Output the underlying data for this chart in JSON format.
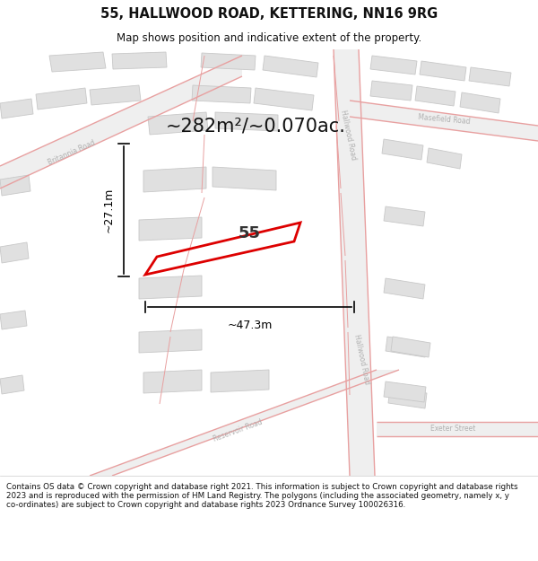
{
  "title_line1": "55, HALLWOOD ROAD, KETTERING, NN16 9RG",
  "title_line2": "Map shows position and indicative extent of the property.",
  "footer_text": "Contains OS data © Crown copyright and database right 2021. This information is subject to Crown copyright and database rights 2023 and is reproduced with the permission of HM Land Registry. The polygons (including the associated geometry, namely x, y co-ordinates) are subject to Crown copyright and database rights 2023 Ordnance Survey 100026316.",
  "area_text": "~282m²/~0.070ac.",
  "dim_width": "~47.3m",
  "dim_height": "~27.1m",
  "plot_number": "55",
  "map_bg": "#f7f7f7",
  "block_color": "#e0e0e0",
  "block_outline": "#c8c8c8",
  "road_fill": "#efefef",
  "road_pink": "#e8a0a0",
  "plot_color": "#dd0000",
  "dim_color": "#000000",
  "label_color": "#b0b0b0",
  "header_bg": "#ffffff",
  "footer_bg": "#ffffff",
  "title_color": "#111111",
  "footer_color": "#111111"
}
